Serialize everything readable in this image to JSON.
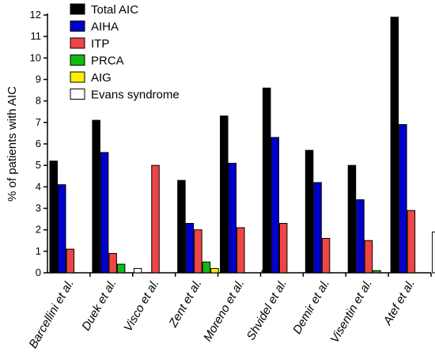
{
  "chart_data": {
    "type": "bar",
    "title": "",
    "xlabel": "",
    "ylabel": "% of patients with AIC",
    "ylim": [
      0,
      12
    ],
    "yticks": [
      0,
      1,
      2,
      3,
      4,
      5,
      6,
      7,
      8,
      9,
      10,
      11,
      12
    ],
    "grid": false,
    "legend_position": "top-left",
    "categories": [
      "Barcellini et al.",
      "Duek et al.",
      "Visco et al.",
      "Zent et al.",
      "Moreno et al.",
      "Shvidel et al.",
      "Demir et al.",
      "Visentin et al.",
      "Atef et al."
    ],
    "series": [
      {
        "name": "Total AIC",
        "color": "#000000",
        "values": [
          5.2,
          7.1,
          null,
          4.3,
          7.3,
          8.6,
          5.7,
          5.0,
          11.9
        ]
      },
      {
        "name": "AIHA",
        "color": "#0000cc",
        "values": [
          4.1,
          5.6,
          null,
          2.3,
          5.1,
          6.3,
          4.2,
          3.4,
          6.9
        ]
      },
      {
        "name": "ITP",
        "color": "#f04545",
        "values": [
          1.1,
          0.9,
          5.0,
          2.0,
          2.1,
          2.3,
          1.6,
          1.5,
          2.9
        ]
      },
      {
        "name": "PRCA",
        "color": "#11bb11",
        "values": [
          null,
          0.4,
          null,
          0.5,
          null,
          null,
          null,
          0.1,
          null
        ]
      },
      {
        "name": "AIG",
        "color": "#ffee00",
        "values": [
          null,
          null,
          null,
          0.2,
          null,
          null,
          null,
          null,
          null
        ]
      },
      {
        "name": "Evans syndrome",
        "color": "#ffffff",
        "values": [
          null,
          0.2,
          null,
          null,
          0.1,
          null,
          null,
          null,
          1.9
        ]
      }
    ]
  }
}
